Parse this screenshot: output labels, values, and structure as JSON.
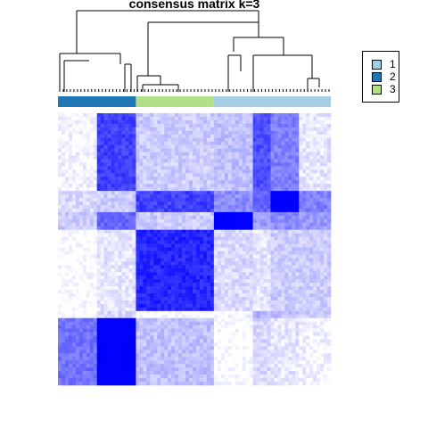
{
  "chart_data": {
    "type": "heatmap",
    "title": "consensus matrix k=3",
    "xlabel": "",
    "ylabel": "",
    "color_scale": {
      "low": "#ffffff",
      "high": "#0000ff",
      "range": [
        0,
        1
      ]
    },
    "class_colors": {
      "1": "#a6cee3",
      "2": "#1f78b4",
      "3": "#b2df8a"
    },
    "legend": {
      "placement": "right",
      "entries": [
        {
          "label": "1",
          "color": "#a6cee3"
        },
        {
          "label": "2",
          "color": "#1f78b4"
        },
        {
          "label": "3",
          "color": "#b2df8a"
        }
      ]
    },
    "column_annotation": [
      {
        "class": "2",
        "count": 22
      },
      {
        "class": "3",
        "count": 22
      },
      {
        "class": "1",
        "count": 33
      }
    ],
    "row_blocks": [
      {
        "class": "1",
        "count": 22
      },
      {
        "class": "1",
        "count": 6
      },
      {
        "class": "3",
        "count": 28
      },
      {
        "class": "2",
        "count": 21
      }
    ],
    "block_consensus": [
      [
        0.05,
        0.75,
        0.2,
        0.25,
        0.7,
        0.5,
        0.1
      ],
      [
        0.15,
        0.2,
        0.75,
        0.45,
        0.6,
        1.0,
        0.5
      ],
      [
        0.2,
        0.6,
        0.2,
        1.0,
        0.4,
        0.45,
        0.4
      ],
      [
        0.0,
        0.1,
        0.85,
        0.15,
        0.1,
        0.2,
        0.2
      ],
      [
        0.0,
        0.15,
        0.0,
        0.05,
        0.3,
        0.25,
        0.2
      ],
      [
        0.55,
        1.0,
        0.25,
        0.0,
        0.15,
        0.1,
        0.05
      ]
    ]
  }
}
